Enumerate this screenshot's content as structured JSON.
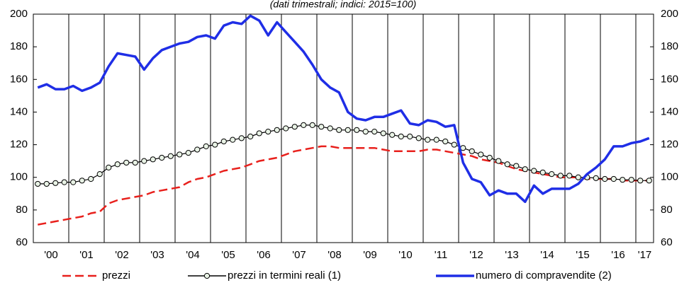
{
  "chart_data": {
    "type": "line",
    "subtitle": "(dati trimestrali; indici: 2015=100)",
    "categories": [
      "'00",
      null,
      null,
      null,
      "'01",
      null,
      null,
      null,
      "'02",
      null,
      null,
      null,
      "'03",
      null,
      null,
      null,
      "'04",
      null,
      null,
      null,
      "'05",
      null,
      null,
      null,
      "'06",
      null,
      null,
      null,
      "'07",
      null,
      null,
      null,
      "'08",
      null,
      null,
      null,
      "'09",
      null,
      null,
      null,
      "'10",
      null,
      null,
      null,
      "'11",
      null,
      null,
      null,
      "'12",
      null,
      null,
      null,
      "'13",
      null,
      null,
      null,
      "'14",
      null,
      null,
      null,
      "'15",
      null,
      null,
      null,
      "'16",
      null,
      null,
      null,
      "'17",
      null
    ],
    "series": [
      {
        "name": "prezzi",
        "color": "#e8201c",
        "style": "dashed",
        "values": [
          71,
          72,
          73,
          74,
          75,
          76,
          78,
          79,
          84,
          86,
          87,
          88,
          89,
          91,
          92,
          93,
          94,
          97,
          99,
          100,
          102,
          104,
          105,
          106,
          108,
          110,
          111,
          112,
          114,
          116,
          117,
          118,
          119,
          119,
          118,
          118,
          118,
          118,
          118,
          117,
          116,
          116,
          116,
          116,
          117,
          117,
          116,
          115,
          114,
          113,
          111,
          110,
          109,
          107,
          105,
          104,
          103,
          102,
          101,
          100,
          100,
          100,
          99,
          99,
          99,
          99,
          98,
          98,
          98,
          98
        ]
      },
      {
        "name": "prezzi in termini reali (1)",
        "color": "#000000",
        "style": "markers",
        "values": [
          96,
          96,
          96.5,
          97,
          97,
          98,
          99,
          102,
          106,
          108,
          109,
          109,
          110,
          111,
          112,
          113,
          114,
          115,
          117,
          119,
          120,
          122,
          123,
          124,
          125,
          127,
          128,
          129,
          130,
          131,
          132,
          132,
          131,
          130,
          129,
          129,
          129,
          128,
          128,
          127,
          126,
          125,
          125,
          124,
          123,
          123,
          122,
          120,
          118,
          116,
          114,
          112,
          110,
          108,
          107,
          105,
          104,
          103,
          102,
          101,
          101,
          100,
          100,
          99.5,
          99,
          99,
          98.5,
          98.5,
          98,
          98
        ]
      },
      {
        "name": "numero di compravendite (2)",
        "color": "#1f2ee6",
        "style": "solid",
        "values": [
          155,
          157,
          154,
          154,
          156,
          153,
          155,
          158,
          168,
          176,
          175,
          174,
          166,
          173,
          178,
          180,
          182,
          183,
          186,
          187,
          185,
          193,
          195,
          194,
          199,
          196,
          187,
          195,
          189,
          183,
          177,
          169,
          160,
          155,
          152,
          140,
          136,
          135,
          137,
          137,
          139,
          141,
          133,
          132,
          135,
          134,
          131,
          132,
          109,
          99,
          97,
          89,
          92,
          90,
          90,
          85,
          95,
          90,
          93,
          93,
          93,
          96,
          102,
          106,
          111,
          119,
          119,
          121,
          122,
          124
        ]
      }
    ],
    "ylim": [
      60,
      200
    ],
    "yticks": [
      60,
      80,
      100,
      120,
      140,
      160,
      180,
      200
    ]
  }
}
